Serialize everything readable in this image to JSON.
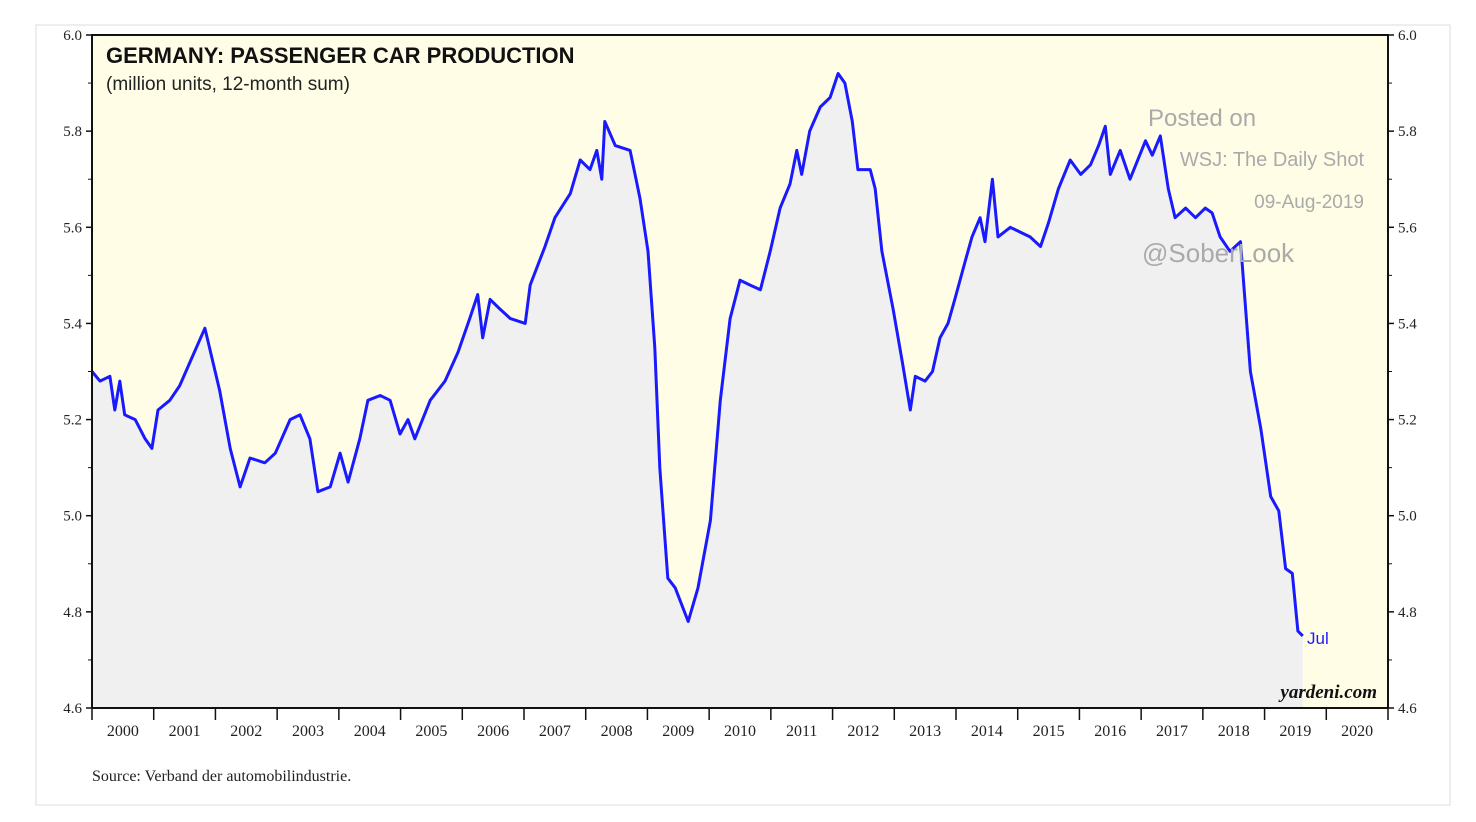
{
  "chart_data": {
    "type": "line",
    "title": "GERMANY: PASSENGER CAR PRODUCTION",
    "subtitle": "(million units, 12-month sum)",
    "xlabel": "",
    "ylabel": "",
    "ylim": [
      4.6,
      6.0
    ],
    "xlim": [
      2000,
      2021
    ],
    "y_ticks": [
      "4.6",
      "4.8",
      "5.0",
      "5.2",
      "5.4",
      "5.6",
      "5.8",
      "6.0"
    ],
    "x_tick_labels": [
      "2000",
      "2001",
      "2002",
      "2003",
      "2004",
      "2005",
      "2006",
      "2007",
      "2008",
      "2009",
      "2010",
      "2011",
      "2012",
      "2013",
      "2014",
      "2015",
      "2016",
      "2017",
      "2018",
      "2019",
      "2020"
    ],
    "end_label": "Jul",
    "source": "Source: Verband der automobilindustrie.",
    "brand": "yardeni.com",
    "watermark": [
      "Posted on",
      "WSJ: The Daily Shot",
      "09-Aug-2019",
      "@SoberLook"
    ],
    "grid": false,
    "line_color": "#1a1aff",
    "series": [
      {
        "name": "Passenger car production (12-month sum)",
        "points": [
          [
            2000.0,
            5.3
          ],
          [
            2000.13,
            5.28
          ],
          [
            2000.29,
            5.29
          ],
          [
            2000.37,
            5.22
          ],
          [
            2000.45,
            5.28
          ],
          [
            2000.53,
            5.21
          ],
          [
            2000.7,
            5.2
          ],
          [
            2000.86,
            5.16
          ],
          [
            2000.97,
            5.14
          ],
          [
            2001.07,
            5.22
          ],
          [
            2001.26,
            5.24
          ],
          [
            2001.42,
            5.27
          ],
          [
            2001.59,
            5.32
          ],
          [
            2001.83,
            5.39
          ],
          [
            2002.07,
            5.26
          ],
          [
            2002.24,
            5.14
          ],
          [
            2002.4,
            5.06
          ],
          [
            2002.56,
            5.12
          ],
          [
            2002.8,
            5.11
          ],
          [
            2002.97,
            5.13
          ],
          [
            2003.21,
            5.2
          ],
          [
            2003.37,
            5.21
          ],
          [
            2003.53,
            5.16
          ],
          [
            2003.66,
            5.05
          ],
          [
            2003.86,
            5.06
          ],
          [
            2004.02,
            5.13
          ],
          [
            2004.15,
            5.07
          ],
          [
            2004.34,
            5.16
          ],
          [
            2004.47,
            5.24
          ],
          [
            2004.67,
            5.25
          ],
          [
            2004.83,
            5.24
          ],
          [
            2004.99,
            5.17
          ],
          [
            2005.12,
            5.2
          ],
          [
            2005.23,
            5.16
          ],
          [
            2005.48,
            5.24
          ],
          [
            2005.72,
            5.28
          ],
          [
            2005.93,
            5.34
          ],
          [
            2006.12,
            5.41
          ],
          [
            2006.25,
            5.46
          ],
          [
            2006.33,
            5.37
          ],
          [
            2006.45,
            5.45
          ],
          [
            2006.61,
            5.43
          ],
          [
            2006.78,
            5.41
          ],
          [
            2007.02,
            5.4
          ],
          [
            2007.1,
            5.48
          ],
          [
            2007.34,
            5.56
          ],
          [
            2007.5,
            5.62
          ],
          [
            2007.75,
            5.67
          ],
          [
            2007.91,
            5.74
          ],
          [
            2008.07,
            5.72
          ],
          [
            2008.18,
            5.76
          ],
          [
            2008.26,
            5.7
          ],
          [
            2008.31,
            5.82
          ],
          [
            2008.48,
            5.77
          ],
          [
            2008.72,
            5.76
          ],
          [
            2008.88,
            5.66
          ],
          [
            2009.01,
            5.55
          ],
          [
            2009.12,
            5.35
          ],
          [
            2009.2,
            5.1
          ],
          [
            2009.33,
            4.87
          ],
          [
            2009.45,
            4.85
          ],
          [
            2009.66,
            4.78
          ],
          [
            2009.82,
            4.85
          ],
          [
            2010.02,
            4.99
          ],
          [
            2010.18,
            5.24
          ],
          [
            2010.34,
            5.41
          ],
          [
            2010.5,
            5.49
          ],
          [
            2010.66,
            5.48
          ],
          [
            2010.83,
            5.47
          ],
          [
            2010.99,
            5.55
          ],
          [
            2011.15,
            5.64
          ],
          [
            2011.31,
            5.69
          ],
          [
            2011.42,
            5.76
          ],
          [
            2011.5,
            5.71
          ],
          [
            2011.63,
            5.8
          ],
          [
            2011.8,
            5.85
          ],
          [
            2011.96,
            5.87
          ],
          [
            2012.09,
            5.92
          ],
          [
            2012.2,
            5.9
          ],
          [
            2012.32,
            5.82
          ],
          [
            2012.41,
            5.72
          ],
          [
            2012.61,
            5.72
          ],
          [
            2012.69,
            5.68
          ],
          [
            2012.8,
            5.55
          ],
          [
            2012.98,
            5.43
          ],
          [
            2013.13,
            5.32
          ],
          [
            2013.26,
            5.22
          ],
          [
            2013.34,
            5.29
          ],
          [
            2013.5,
            5.28
          ],
          [
            2013.62,
            5.3
          ],
          [
            2013.74,
            5.37
          ],
          [
            2013.87,
            5.4
          ],
          [
            2013.98,
            5.45
          ],
          [
            2014.15,
            5.53
          ],
          [
            2014.26,
            5.58
          ],
          [
            2014.39,
            5.62
          ],
          [
            2014.47,
            5.57
          ],
          [
            2014.59,
            5.7
          ],
          [
            2014.68,
            5.58
          ],
          [
            2014.88,
            5.6
          ],
          [
            2015.04,
            5.59
          ],
          [
            2015.2,
            5.58
          ],
          [
            2015.37,
            5.56
          ],
          [
            2015.5,
            5.61
          ],
          [
            2015.66,
            5.68
          ],
          [
            2015.85,
            5.74
          ],
          [
            2016.02,
            5.71
          ],
          [
            2016.18,
            5.73
          ],
          [
            2016.31,
            5.77
          ],
          [
            2016.42,
            5.81
          ],
          [
            2016.5,
            5.71
          ],
          [
            2016.66,
            5.76
          ],
          [
            2016.82,
            5.7
          ],
          [
            2017.07,
            5.78
          ],
          [
            2017.18,
            5.75
          ],
          [
            2017.31,
            5.79
          ],
          [
            2017.44,
            5.68
          ],
          [
            2017.55,
            5.62
          ],
          [
            2017.72,
            5.64
          ],
          [
            2017.88,
            5.62
          ],
          [
            2018.04,
            5.64
          ],
          [
            2018.15,
            5.63
          ],
          [
            2018.28,
            5.58
          ],
          [
            2018.44,
            5.55
          ],
          [
            2018.61,
            5.57
          ],
          [
            2018.77,
            5.3
          ],
          [
            2018.94,
            5.18
          ],
          [
            2019.1,
            5.04
          ],
          [
            2019.23,
            5.01
          ],
          [
            2019.34,
            4.89
          ],
          [
            2019.45,
            4.88
          ],
          [
            2019.54,
            4.76
          ],
          [
            2019.62,
            4.75
          ]
        ]
      }
    ]
  }
}
